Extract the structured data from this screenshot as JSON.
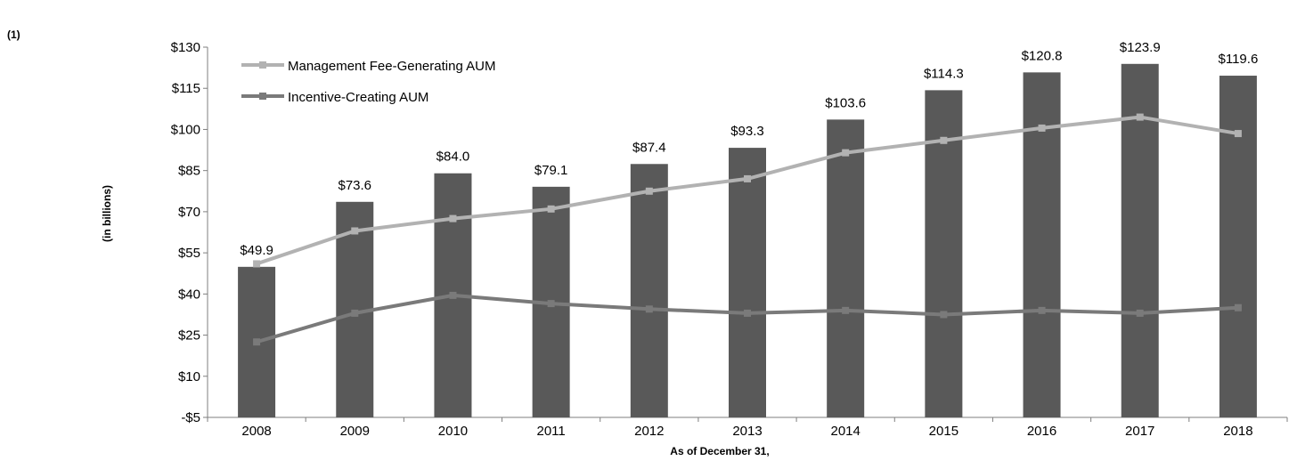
{
  "footnote": "(1)",
  "chart_data": {
    "type": "bar",
    "title": "",
    "xlabel": "As  of December 31,",
    "ylabel": "(in billions)",
    "ylim": [
      -5,
      130
    ],
    "y_ticks": [
      "-$5",
      "$10",
      "$25",
      "$40",
      "$55",
      "$70",
      "$85",
      "$100",
      "$115",
      "$130"
    ],
    "y_tick_values": [
      -5,
      10,
      25,
      40,
      55,
      70,
      85,
      100,
      115,
      130
    ],
    "categories": [
      "2008",
      "2009",
      "2010",
      "2011",
      "2012",
      "2013",
      "2014",
      "2015",
      "2016",
      "2017",
      "2018"
    ],
    "series": [
      {
        "kind": "bar",
        "values": [
          49.9,
          73.6,
          84.0,
          79.1,
          87.4,
          93.3,
          103.6,
          114.3,
          120.8,
          123.9,
          119.6
        ],
        "labels": [
          "$49.9",
          "$73.6",
          "$84.0",
          "$79.1",
          "$87.4",
          "$93.3",
          "$103.6",
          "$114.3",
          "$120.8",
          "$123.9",
          "$119.6"
        ],
        "color": "#595959"
      },
      {
        "kind": "line",
        "name": "Management Fee-Generating AUM",
        "values": [
          51,
          63,
          67.5,
          71,
          77.5,
          82,
          91.5,
          96,
          100.5,
          104.5,
          98.5
        ],
        "color": "#b2b2b2"
      },
      {
        "kind": "line",
        "name": "Incentive-Creating AUM",
        "values": [
          22.5,
          33,
          39.5,
          36.5,
          34.5,
          33,
          34,
          32.5,
          34,
          33,
          35
        ],
        "color": "#7a7a7a"
      }
    ],
    "legend_position": "top-left",
    "grid": false
  }
}
